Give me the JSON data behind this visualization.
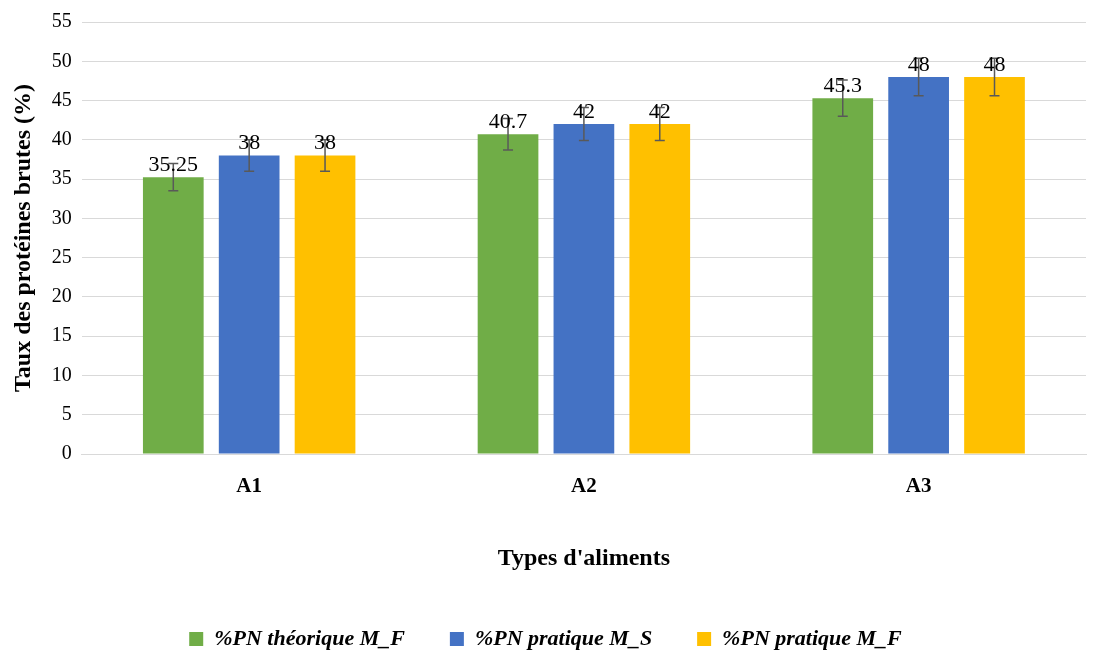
{
  "chart_data": {
    "type": "bar",
    "xlabel": "Types d'aliments",
    "ylabel": "Taux des protéines brutes (%)",
    "categories": [
      "A1",
      "A2",
      "A3"
    ],
    "series": [
      {
        "name": "%PN théorique M_F",
        "color": "#70ad47",
        "values": [
          35.25,
          40.7,
          45.3
        ],
        "errors": [
          1.75,
          2,
          2.3
        ]
      },
      {
        "name": "%PN pratique M_S",
        "color": "#4472c4",
        "values": [
          38,
          42,
          48
        ],
        "errors": [
          2,
          2.1,
          2.4
        ]
      },
      {
        "name": "%PN pratique M_F",
        "color": "#ffc000",
        "values": [
          38,
          42,
          48
        ],
        "errors": [
          2,
          2.1,
          2.4
        ]
      }
    ],
    "ylim": [
      0,
      55
    ],
    "yticks": [
      0,
      5,
      10,
      15,
      20,
      25,
      30,
      35,
      40,
      45,
      50,
      55
    ],
    "grid": "y",
    "legend": "bottom",
    "data_labels": true
  }
}
